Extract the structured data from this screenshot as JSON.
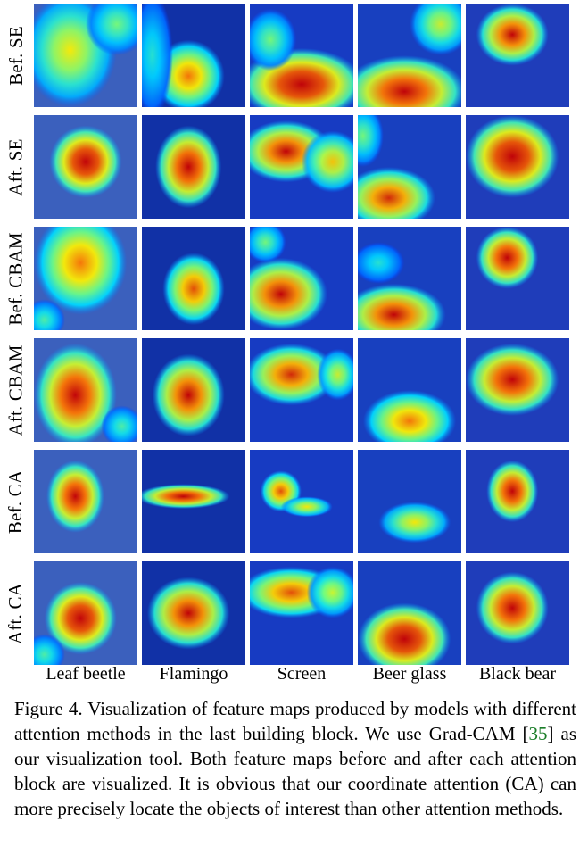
{
  "rows": [
    {
      "label": "Bef. SE"
    },
    {
      "label": "Aft. SE"
    },
    {
      "label": "Bef. CBAM"
    },
    {
      "label": "Aft. CBAM"
    },
    {
      "label": "Bef. CA"
    },
    {
      "label": "Aft. CA"
    }
  ],
  "columns": [
    {
      "label": "Leaf beetle"
    },
    {
      "label": "Flamingo"
    },
    {
      "label": "Screen"
    },
    {
      "label": "Beer glass"
    },
    {
      "label": "Black bear"
    }
  ],
  "caption": {
    "figure_label": "Figure 4.",
    "text_1": "Visualization of feature maps produced by models with different attention methods in the last building block. We use Grad-CAM [",
    "ref": "35",
    "text_2": "] as our visualization tool. Both feature maps before and after each attention block are visualized. It is obvious that our coordinate attention (CA) can more precisely locate the objects of interest than other attention methods."
  }
}
